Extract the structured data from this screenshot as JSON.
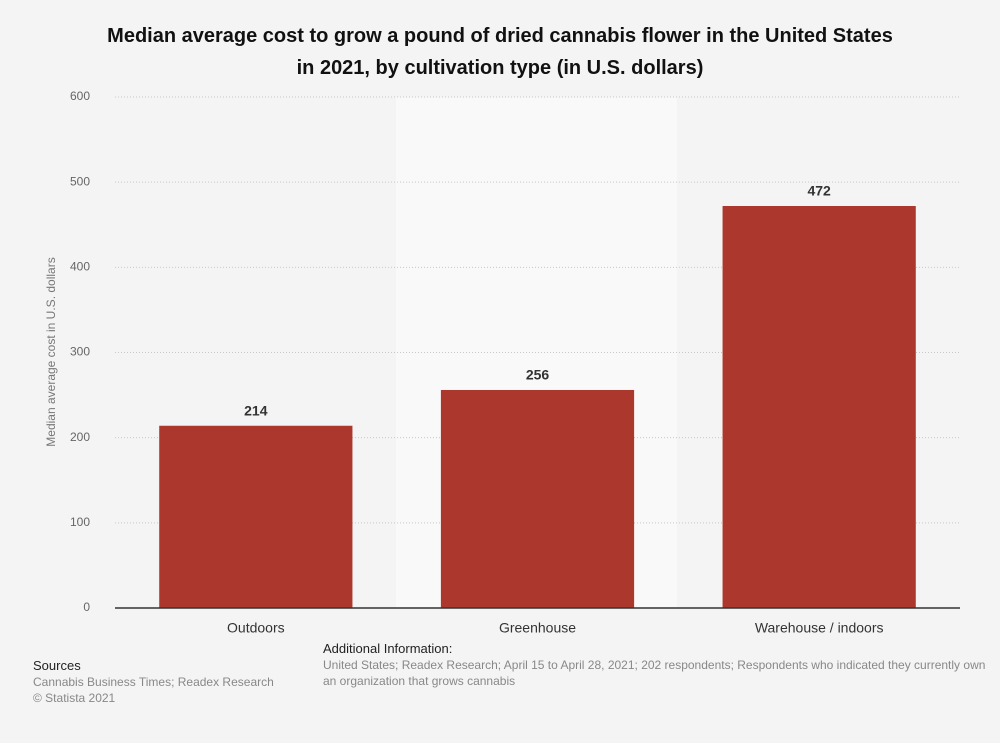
{
  "chart_data": {
    "type": "bar",
    "title": "Median average cost to grow a pound of dried cannabis flower in the United States in 2021, by cultivation type (in U.S. dollars)",
    "y_label": "Median average cost in U.S. dollars",
    "categories": [
      "Outdoors",
      "Greenhouse",
      "Warehouse / indoors"
    ],
    "values": [
      214,
      256,
      472
    ],
    "color": "#ac372d",
    "ylim": [
      0,
      600
    ],
    "yticks": [
      0,
      100,
      200,
      300,
      400,
      500,
      600
    ],
    "grid": true
  },
  "sources": {
    "heading": "Sources",
    "text": "Cannabis Business Times; Readex Research",
    "copyright": "© Statista 2021"
  },
  "additional_info": {
    "heading": "Additional Information:",
    "text": "United States; Readex Research; April 15 to April 28, 2021; 202 respondents; Respondents who indicated they currently own an organization that grows cannabis"
  }
}
